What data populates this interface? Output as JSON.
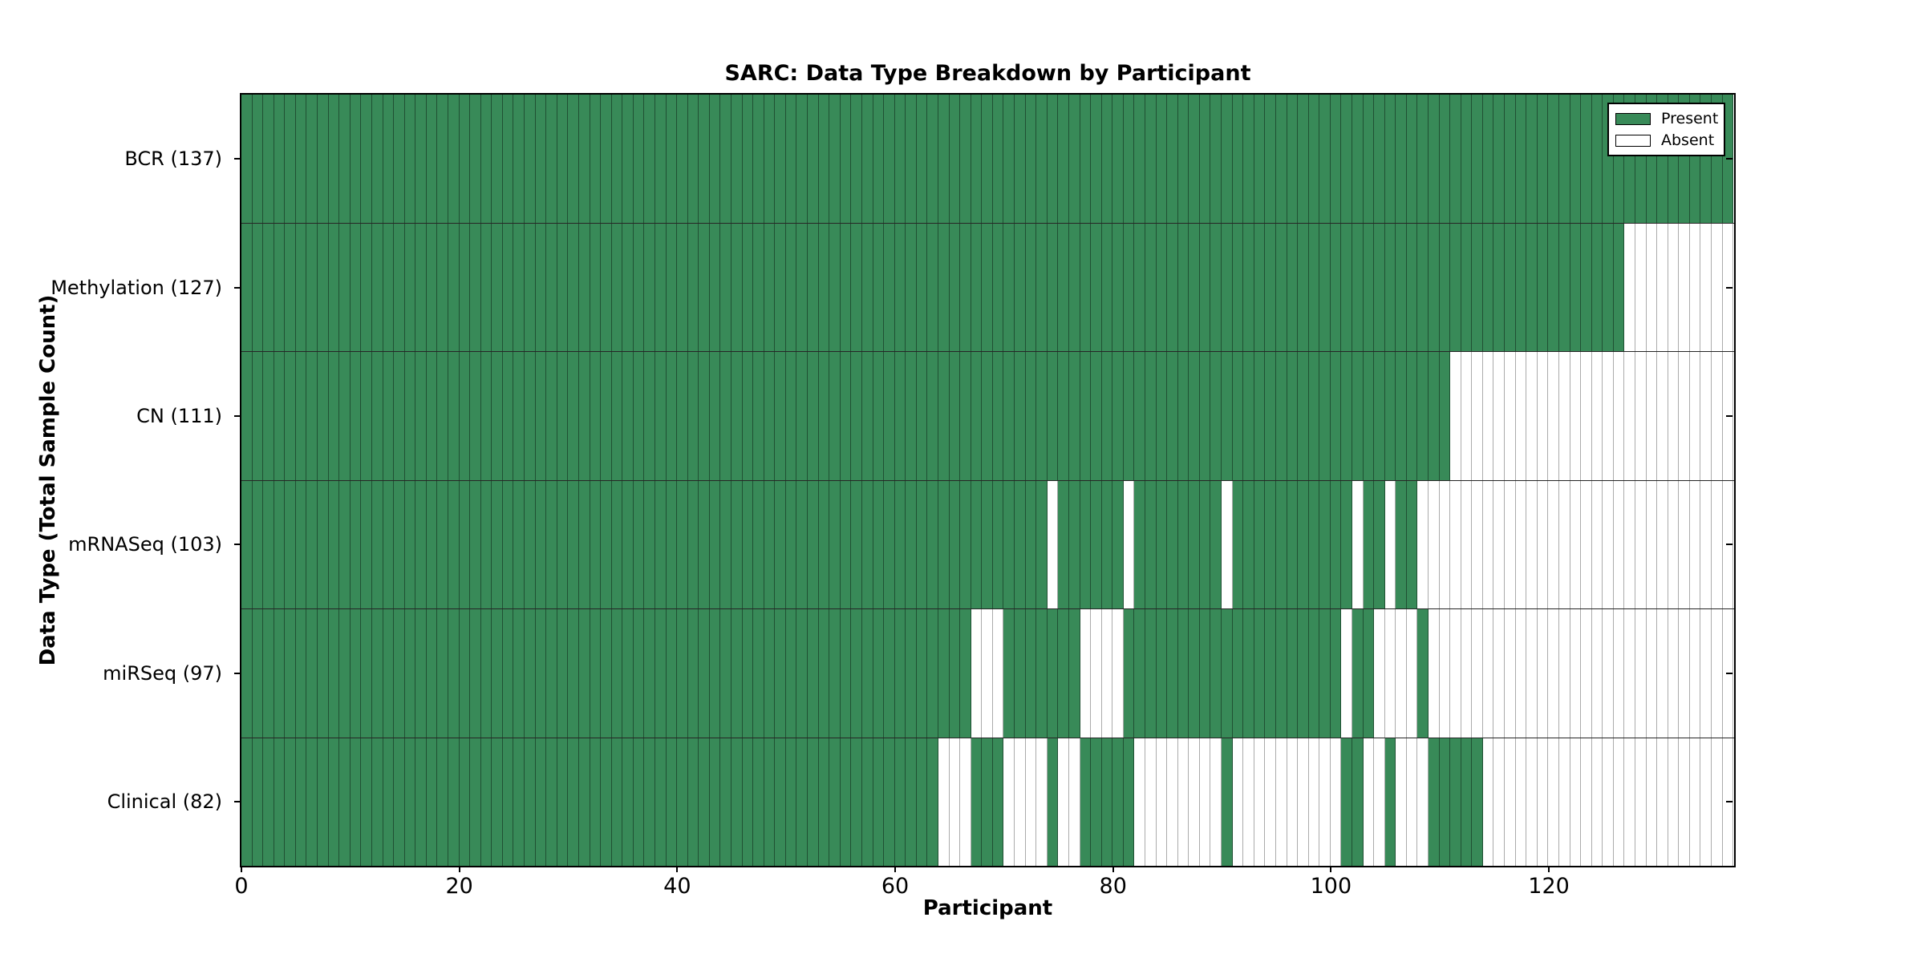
{
  "chart_data": {
    "type": "heatmap",
    "title": "SARC: Data Type Breakdown by Participant",
    "xlabel": "Participant",
    "ylabel": "Data Type (Total Sample Count)",
    "n_participants": 137,
    "x_ticks": [
      0,
      20,
      40,
      60,
      80,
      100,
      120
    ],
    "grid": false,
    "legend_position": "upper right",
    "colors": {
      "present": "#388a58",
      "absent": "#ffffff"
    },
    "legend": [
      {
        "label": "Present",
        "state": "present"
      },
      {
        "label": "Absent",
        "state": "absent"
      }
    ],
    "rows": [
      {
        "label": "BCR (137)",
        "data_type": "BCR",
        "sample_count": 137,
        "present_ranges": [
          [
            0,
            136
          ]
        ]
      },
      {
        "label": "Methylation (127)",
        "data_type": "Methylation",
        "sample_count": 127,
        "present_ranges": [
          [
            0,
            126
          ]
        ]
      },
      {
        "label": "CN (111)",
        "data_type": "CN",
        "sample_count": 111,
        "present_ranges": [
          [
            0,
            110
          ]
        ]
      },
      {
        "label": "mRNASeq (103)",
        "data_type": "mRNASeq",
        "sample_count": 103,
        "present_ranges": [
          [
            0,
            73
          ],
          [
            75,
            80
          ],
          [
            82,
            89
          ],
          [
            91,
            101
          ],
          [
            103,
            104
          ],
          [
            106,
            107
          ]
        ]
      },
      {
        "label": "miRSeq (97)",
        "data_type": "miRSeq",
        "sample_count": 97,
        "present_ranges": [
          [
            0,
            66
          ],
          [
            70,
            76
          ],
          [
            81,
            100
          ],
          [
            102,
            103
          ],
          [
            108,
            108
          ]
        ]
      },
      {
        "label": "Clinical (82)",
        "data_type": "Clinical",
        "sample_count": 82,
        "present_ranges": [
          [
            0,
            63
          ],
          [
            67,
            69
          ],
          [
            74,
            74
          ],
          [
            77,
            81
          ],
          [
            90,
            90
          ],
          [
            101,
            102
          ],
          [
            105,
            105
          ],
          [
            109,
            113
          ]
        ]
      }
    ]
  }
}
